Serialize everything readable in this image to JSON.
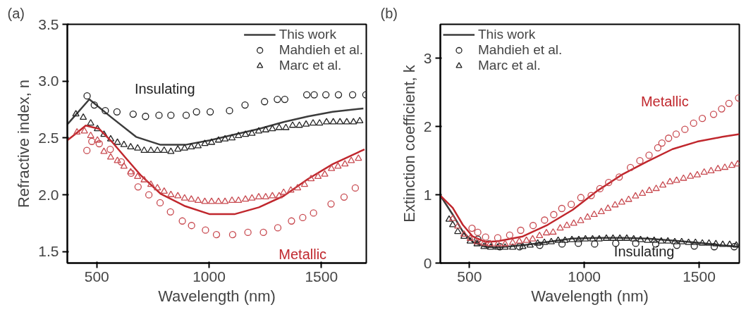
{
  "chart_data": [
    {
      "type": "line",
      "title": "(a)",
      "xlabel": "Wavelength (nm)",
      "ylabel": "Refractive index, n",
      "xlim": [
        369,
        1700
      ],
      "ylim": [
        1.4,
        3.5
      ],
      "xticks": [
        500,
        1000,
        1500
      ],
      "yticks": [
        1.5,
        {
          "value": 2,
          "label": "2.0"
        },
        2.5,
        {
          "value": 3,
          "label": "3.0"
        },
        3.5
      ],
      "grid": false,
      "legend": "top right",
      "annotations": [
        "Insulating",
        "Metallic"
      ],
      "series": [
        {
          "name": "This work",
          "marker": "none",
          "color": "#3c3c3c",
          "x": [
            369,
            467,
            566,
            675,
            784,
            894,
            1003,
            1113,
            1222,
            1332,
            1441,
            1550,
            1687
          ],
          "values": [
            2.62,
            2.84,
            2.68,
            2.51,
            2.44,
            2.44,
            2.48,
            2.53,
            2.58,
            2.64,
            2.69,
            2.73,
            2.76
          ]
        },
        {
          "name": "Mahdieh et al.",
          "type": "scatter",
          "marker": "circle",
          "color": "#222222",
          "x": [
            457,
            489,
            538,
            590,
            662,
            717,
            777,
            830,
            898,
            944,
            1005,
            1091,
            1160,
            1247,
            1304,
            1337,
            1435,
            1468,
            1520,
            1576,
            1639,
            1698
          ],
          "values": [
            2.87,
            2.79,
            2.74,
            2.73,
            2.71,
            2.69,
            2.7,
            2.7,
            2.7,
            2.73,
            2.73,
            2.74,
            2.79,
            2.82,
            2.84,
            2.84,
            2.88,
            2.88,
            2.88,
            2.88,
            2.88,
            2.88
          ]
        },
        {
          "name": "Marc et al.",
          "type": "scatter",
          "marker": "triangle",
          "color": "#222222",
          "x": [
            407,
            440,
            473,
            503,
            532,
            562,
            592,
            621,
            651,
            682,
            711,
            741,
            770,
            800,
            830,
            861,
            891,
            921,
            951,
            981,
            1011,
            1042,
            1071,
            1102,
            1131,
            1162,
            1191,
            1221,
            1252,
            1282,
            1312,
            1342,
            1372,
            1402,
            1432,
            1463,
            1492,
            1523,
            1553,
            1583,
            1613,
            1643,
            1671
          ],
          "values": [
            2.71,
            2.68,
            2.63,
            2.58,
            2.53,
            2.49,
            2.46,
            2.44,
            2.42,
            2.41,
            2.39,
            2.39,
            2.39,
            2.39,
            2.38,
            2.4,
            2.41,
            2.42,
            2.43,
            2.45,
            2.46,
            2.48,
            2.49,
            2.5,
            2.52,
            2.53,
            2.54,
            2.56,
            2.57,
            2.58,
            2.59,
            2.59,
            2.61,
            2.61,
            2.62,
            2.63,
            2.63,
            2.64,
            2.64,
            2.64,
            2.64,
            2.64,
            2.65
          ]
        },
        {
          "marker": "none",
          "color": "#c0272d",
          "x": [
            369,
            402,
            451,
            511,
            566,
            631,
            697,
            784,
            894,
            1003,
            1113,
            1222,
            1332,
            1441,
            1550,
            1692
          ],
          "values": [
            2.48,
            2.53,
            2.61,
            2.58,
            2.47,
            2.32,
            2.17,
            2.01,
            1.9,
            1.83,
            1.83,
            1.89,
            1.99,
            2.14,
            2.27,
            2.4
          ]
        },
        {
          "type": "scatter",
          "marker": "circle",
          "color": "#c84a50",
          "x": [
            456,
            478,
            511,
            560,
            609,
            653,
            684,
            732,
            782,
            828,
            881,
            922,
            984,
            1033,
            1105,
            1173,
            1242,
            1306,
            1367,
            1417,
            1465,
            1543,
            1601,
            1651
          ],
          "values": [
            2.39,
            2.47,
            2.45,
            2.4,
            2.29,
            2.19,
            2.07,
            2.0,
            1.93,
            1.85,
            1.77,
            1.73,
            1.69,
            1.65,
            1.65,
            1.67,
            1.67,
            1.71,
            1.77,
            1.8,
            1.84,
            1.92,
            1.98,
            2.06
          ]
        },
        {
          "type": "scatter",
          "marker": "triangle",
          "color": "#c84a50",
          "x": [
            412,
            445,
            473,
            503,
            532,
            562,
            592,
            621,
            651,
            682,
            711,
            741,
            770,
            800,
            830,
            861,
            891,
            921,
            951,
            981,
            1011,
            1042,
            1071,
            1102,
            1131,
            1162,
            1191,
            1221,
            1252,
            1282,
            1312,
            1332,
            1364,
            1394,
            1425,
            1454,
            1485,
            1515,
            1545,
            1574,
            1605,
            1633,
            1665
          ],
          "values": [
            2.55,
            2.56,
            2.52,
            2.48,
            2.38,
            2.33,
            2.3,
            2.25,
            2.2,
            2.16,
            2.13,
            2.09,
            2.06,
            2.03,
            2.0,
            1.99,
            1.97,
            1.96,
            1.95,
            1.94,
            1.94,
            1.94,
            1.94,
            1.95,
            1.95,
            1.96,
            1.97,
            1.98,
            1.98,
            1.99,
            1.99,
            2.02,
            2.04,
            2.06,
            2.09,
            2.14,
            2.16,
            2.18,
            2.23,
            2.25,
            2.27,
            2.3,
            2.32
          ]
        }
      ]
    },
    {
      "type": "line",
      "title": "(b)",
      "xlabel": "Wavelength (nm)",
      "ylabel": "Extinction coefficient, k",
      "xlim": [
        373,
        1675
      ],
      "ylim": [
        0,
        3.5
      ],
      "xticks": [
        500,
        1000,
        1500
      ],
      "yticks": [
        0,
        1,
        2,
        3
      ],
      "grid": false,
      "legend": "top left",
      "annotations": [
        "Metallic",
        "Insulating"
      ],
      "series": [
        {
          "name": "This work",
          "marker": "none",
          "color": "#3c3c3c",
          "x": [
            373,
            427,
            471,
            514,
            568,
            623,
            732,
            840,
            949,
            1057,
            1166,
            1275,
            1384,
            1492,
            1601,
            1675
          ],
          "values": [
            0.99,
            0.71,
            0.46,
            0.31,
            0.24,
            0.23,
            0.26,
            0.31,
            0.36,
            0.37,
            0.37,
            0.36,
            0.33,
            0.3,
            0.26,
            0.24
          ]
        },
        {
          "name": "Mahdieh et al.",
          "type": "scatter",
          "marker": "circle",
          "color": "#222222",
          "x": [
            536,
            583,
            632,
            718,
            806,
            903,
            974,
            1045,
            1137,
            1224,
            1311,
            1403,
            1479,
            1566,
            1653
          ],
          "values": [
            0.35,
            0.28,
            0.24,
            0.24,
            0.26,
            0.28,
            0.29,
            0.28,
            0.29,
            0.29,
            0.28,
            0.26,
            0.25,
            0.24,
            0.24
          ]
        },
        {
          "name": "Marc et al.",
          "type": "scatter",
          "marker": "triangle",
          "color": "#222222",
          "x": [
            411,
            427,
            449,
            476,
            503,
            533,
            563,
            592,
            623,
            655,
            688,
            732,
            764,
            797,
            826,
            856,
            886,
            916,
            946,
            976,
            1005,
            1036,
            1065,
            1096,
            1125,
            1155,
            1185,
            1215,
            1245,
            1275,
            1304,
            1335,
            1364,
            1394,
            1424,
            1454,
            1484,
            1514,
            1543,
            1573,
            1603,
            1633,
            1662
          ],
          "values": [
            0.64,
            0.56,
            0.46,
            0.39,
            0.32,
            0.28,
            0.24,
            0.23,
            0.23,
            0.23,
            0.23,
            0.24,
            0.26,
            0.29,
            0.3,
            0.31,
            0.33,
            0.33,
            0.34,
            0.34,
            0.35,
            0.35,
            0.35,
            0.36,
            0.36,
            0.36,
            0.36,
            0.35,
            0.34,
            0.33,
            0.33,
            0.32,
            0.32,
            0.31,
            0.31,
            0.3,
            0.3,
            0.29,
            0.29,
            0.28,
            0.27,
            0.27,
            0.26
          ]
        },
        {
          "marker": "none",
          "color": "#c0272d",
          "x": [
            373,
            427,
            471,
            514,
            568,
            623,
            732,
            840,
            949,
            1057,
            1166,
            1275,
            1384,
            1492,
            1601,
            1675
          ],
          "values": [
            0.99,
            0.81,
            0.56,
            0.39,
            0.31,
            0.32,
            0.39,
            0.56,
            0.78,
            1.06,
            1.3,
            1.49,
            1.67,
            1.78,
            1.85,
            1.89
          ]
        },
        {
          "type": "scatter",
          "marker": "circle",
          "color": "#c84a50",
          "x": [
            511,
            536,
            570,
            623,
            675,
            723,
            777,
            827,
            867,
            902,
            943,
            985,
            1030,
            1068,
            1106,
            1152,
            1201,
            1242,
            1282,
            1320,
            1338,
            1367,
            1400,
            1438,
            1476,
            1514,
            1563,
            1598,
            1630,
            1672
          ],
          "values": [
            0.51,
            0.45,
            0.38,
            0.37,
            0.41,
            0.48,
            0.55,
            0.63,
            0.71,
            0.8,
            0.86,
            0.96,
            0.99,
            1.09,
            1.18,
            1.26,
            1.4,
            1.5,
            1.58,
            1.69,
            1.76,
            1.83,
            1.89,
            1.96,
            2.05,
            2.12,
            2.18,
            2.26,
            2.34,
            2.42
          ]
        },
        {
          "type": "scatter",
          "marker": "triangle",
          "color": "#c84a50",
          "x": [
            427,
            449,
            476,
            503,
            533,
            563,
            590,
            623,
            655,
            688,
            717,
            748,
            775,
            805,
            835,
            864,
            895,
            924,
            954,
            984,
            1014,
            1043,
            1074,
            1103,
            1134,
            1163,
            1193,
            1223,
            1253,
            1283,
            1313,
            1342,
            1373,
            1402,
            1432,
            1462,
            1492,
            1522,
            1552,
            1582,
            1612,
            1642,
            1668
          ],
          "values": [
            0.65,
            0.54,
            0.42,
            0.36,
            0.31,
            0.29,
            0.28,
            0.28,
            0.28,
            0.3,
            0.32,
            0.33,
            0.35,
            0.4,
            0.44,
            0.45,
            0.51,
            0.55,
            0.58,
            0.62,
            0.67,
            0.71,
            0.75,
            0.8,
            0.85,
            0.89,
            0.93,
            0.98,
            1.02,
            1.06,
            1.09,
            1.14,
            1.19,
            1.21,
            1.24,
            1.27,
            1.29,
            1.33,
            1.35,
            1.38,
            1.4,
            1.43,
            1.45
          ]
        }
      ]
    }
  ]
}
